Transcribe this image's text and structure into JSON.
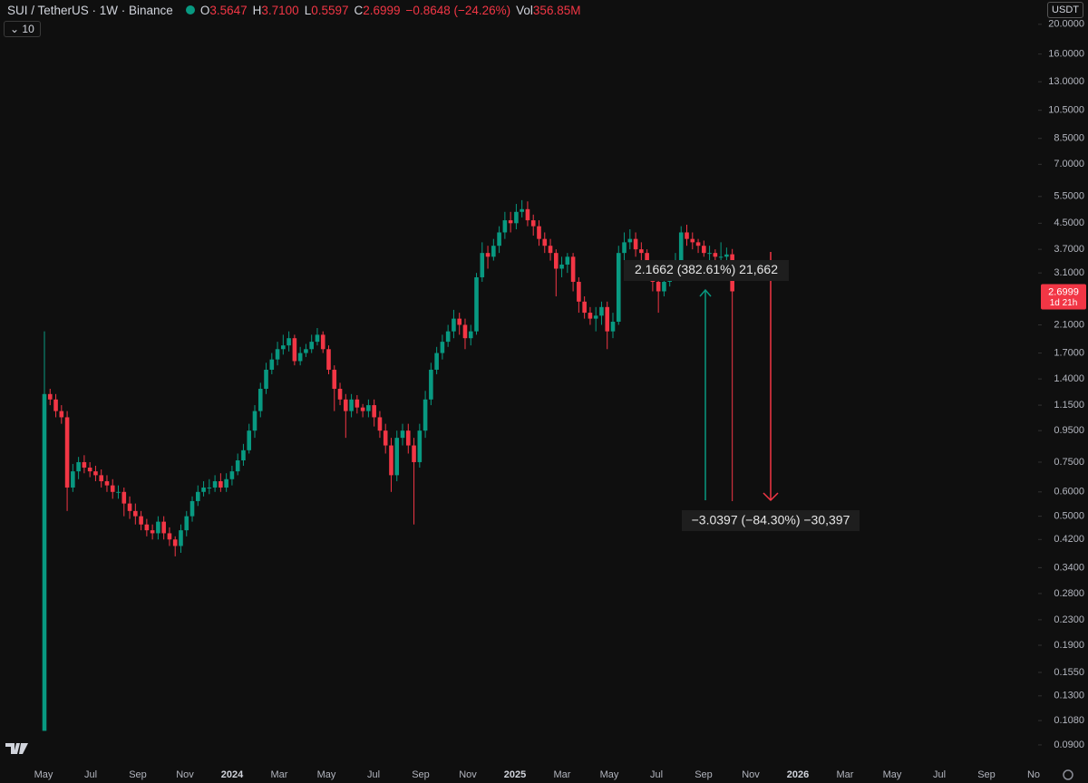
{
  "header": {
    "symbol": "SUI / TetherUS · 1W · Binance",
    "o_label": "O",
    "o": "3.5647",
    "h_label": "H",
    "h": "3.7100",
    "l_label": "L",
    "l": "0.5597",
    "c_label": "C",
    "c": "2.6999",
    "change": "−0.8648 (−24.26%)",
    "vol_label": "Vol",
    "vol": "356.85M",
    "indicator": "10",
    "currency": "USDT",
    "countdown": "1d 21h"
  },
  "chart_data": {
    "type": "candlestick",
    "log_scale": true,
    "up_color": "#089981",
    "down_color": "#f23645",
    "open": [
      0.1,
      1.25,
      1.2,
      1.1,
      1.05,
      0.62,
      0.7,
      0.75,
      0.72,
      0.7,
      0.68,
      0.65,
      0.63,
      0.6,
      0.6,
      0.55,
      0.52,
      0.5,
      0.47,
      0.45,
      0.44,
      0.48,
      0.44,
      0.42,
      0.4,
      0.45,
      0.5,
      0.56,
      0.6,
      0.62,
      0.62,
      0.65,
      0.62,
      0.66,
      0.7,
      0.76,
      0.82,
      0.95,
      1.1,
      1.3,
      1.5,
      1.62,
      1.75,
      1.8,
      1.9,
      1.6,
      1.7,
      1.75,
      1.85,
      1.95,
      1.75,
      1.5,
      1.3,
      1.2,
      1.1,
      1.2,
      1.13,
      1.1,
      1.15,
      1.05,
      0.95,
      0.85,
      0.68,
      0.9,
      0.95,
      0.85,
      0.75,
      0.95,
      1.2,
      1.5,
      1.7,
      1.85,
      2.0,
      2.2,
      2.1,
      1.9,
      2.0,
      3.0,
      3.6,
      3.5,
      3.8,
      4.2,
      4.6,
      4.5,
      4.9,
      5.0,
      4.6,
      4.4,
      4.0,
      3.8,
      3.6,
      3.2,
      3.3,
      3.5,
      2.9,
      2.5,
      2.3,
      2.2,
      2.25,
      2.4,
      2.0,
      2.15,
      3.6,
      3.9,
      4.0,
      3.7,
      3.6,
      3.3,
      2.9,
      2.7,
      2.9,
      3.1,
      3.4,
      4.2,
      4.0,
      3.9,
      3.8,
      3.6,
      3.6,
      3.5,
      3.5,
      3.5647
    ],
    "high": [
      2.0,
      1.3,
      1.25,
      1.15,
      1.1,
      0.74,
      0.78,
      0.79,
      0.75,
      0.73,
      0.71,
      0.68,
      0.66,
      0.63,
      0.62,
      0.58,
      0.55,
      0.52,
      0.49,
      0.47,
      0.5,
      0.5,
      0.46,
      0.43,
      0.47,
      0.52,
      0.58,
      0.63,
      0.65,
      0.66,
      0.68,
      0.69,
      0.69,
      0.73,
      0.8,
      0.86,
      1.0,
      1.15,
      1.36,
      1.58,
      1.7,
      1.85,
      1.95,
      2.0,
      1.95,
      1.78,
      1.82,
      1.95,
      2.05,
      2.0,
      1.8,
      1.55,
      1.36,
      1.25,
      1.25,
      1.24,
      1.16,
      1.2,
      1.2,
      1.1,
      1.0,
      0.9,
      0.95,
      1.0,
      1.0,
      0.9,
      1.0,
      1.28,
      1.58,
      1.78,
      1.95,
      2.1,
      2.35,
      2.3,
      2.2,
      2.1,
      3.1,
      3.9,
      3.8,
      4.0,
      4.4,
      4.9,
      4.9,
      5.2,
      5.35,
      5.3,
      4.8,
      4.6,
      4.2,
      4.0,
      3.7,
      3.5,
      3.6,
      3.6,
      3.0,
      2.6,
      2.4,
      2.4,
      2.5,
      2.5,
      2.3,
      3.8,
      4.2,
      4.3,
      4.2,
      3.9,
      3.7,
      3.4,
      3.0,
      3.1,
      3.3,
      3.6,
      4.4,
      4.45,
      4.2,
      4.0,
      3.95,
      3.8,
      3.7,
      3.9,
      3.75,
      3.71
    ],
    "low": [
      0.1,
      1.15,
      1.05,
      1.0,
      0.52,
      0.6,
      0.66,
      0.69,
      0.67,
      0.65,
      0.62,
      0.6,
      0.57,
      0.57,
      0.5,
      0.49,
      0.47,
      0.45,
      0.43,
      0.42,
      0.42,
      0.42,
      0.4,
      0.37,
      0.38,
      0.43,
      0.48,
      0.54,
      0.58,
      0.59,
      0.6,
      0.6,
      0.6,
      0.63,
      0.68,
      0.73,
      0.8,
      0.9,
      1.05,
      1.25,
      1.45,
      1.55,
      1.68,
      1.72,
      1.55,
      1.55,
      1.65,
      1.7,
      1.8,
      1.7,
      1.45,
      1.1,
      1.15,
      0.9,
      1.05,
      1.08,
      1.05,
      1.05,
      0.98,
      0.9,
      0.8,
      0.6,
      0.65,
      0.85,
      0.8,
      0.47,
      0.72,
      0.9,
      1.15,
      1.45,
      1.62,
      1.78,
      1.9,
      1.95,
      1.75,
      1.8,
      1.95,
      2.9,
      3.2,
      3.4,
      3.6,
      4.0,
      4.2,
      4.3,
      4.7,
      4.4,
      4.1,
      3.8,
      3.6,
      3.4,
      2.6,
      3.0,
      3.1,
      2.7,
      2.3,
      2.2,
      2.1,
      2.0,
      2.1,
      1.75,
      1.9,
      2.1,
      3.4,
      3.7,
      3.5,
      3.4,
      3.1,
      2.7,
      2.3,
      2.6,
      2.8,
      3.0,
      3.3,
      3.8,
      3.7,
      3.6,
      3.5,
      3.4,
      3.35,
      3.35,
      3.4,
      0.5597
    ],
    "close": [
      1.25,
      1.2,
      1.1,
      1.05,
      0.62,
      0.7,
      0.75,
      0.72,
      0.7,
      0.68,
      0.65,
      0.63,
      0.6,
      0.6,
      0.55,
      0.52,
      0.5,
      0.47,
      0.45,
      0.44,
      0.48,
      0.44,
      0.42,
      0.4,
      0.45,
      0.5,
      0.56,
      0.6,
      0.62,
      0.62,
      0.65,
      0.62,
      0.66,
      0.7,
      0.76,
      0.82,
      0.95,
      1.1,
      1.3,
      1.5,
      1.62,
      1.75,
      1.8,
      1.9,
      1.6,
      1.7,
      1.75,
      1.85,
      1.95,
      1.75,
      1.5,
      1.3,
      1.2,
      1.1,
      1.2,
      1.13,
      1.1,
      1.15,
      1.05,
      0.95,
      0.85,
      0.68,
      0.9,
      0.95,
      0.85,
      0.75,
      0.95,
      1.2,
      1.5,
      1.7,
      1.85,
      2.0,
      2.2,
      2.1,
      1.9,
      2.0,
      3.0,
      3.6,
      3.5,
      3.8,
      4.2,
      4.6,
      4.5,
      4.9,
      5.0,
      4.6,
      4.4,
      4.0,
      3.8,
      3.6,
      3.2,
      3.3,
      3.5,
      2.9,
      2.5,
      2.3,
      2.2,
      2.25,
      2.4,
      2.0,
      2.15,
      3.6,
      3.9,
      4.0,
      3.7,
      3.6,
      3.3,
      2.9,
      2.7,
      2.9,
      3.1,
      3.4,
      4.2,
      4.0,
      3.9,
      3.8,
      3.6,
      3.6,
      3.5,
      3.5,
      3.56,
      2.6999
    ],
    "ylim": [
      0.078,
      24
    ],
    "yticks": [
      {
        "value": 20,
        "label": "20.0000"
      },
      {
        "value": 16,
        "label": "16.0000"
      },
      {
        "value": 13,
        "label": "13.0000"
      },
      {
        "value": 10.5,
        "label": "10.5000"
      },
      {
        "value": 8.5,
        "label": "8.5000"
      },
      {
        "value": 7,
        "label": "7.0000"
      },
      {
        "value": 5.5,
        "label": "5.5000"
      },
      {
        "value": 4.5,
        "label": "4.5000"
      },
      {
        "value": 3.7,
        "label": "3.7000"
      },
      {
        "value": 3.1,
        "label": "3.1000"
      },
      {
        "value": 2.1,
        "label": "2.1000"
      },
      {
        "value": 1.7,
        "label": "1.7000"
      },
      {
        "value": 1.4,
        "label": "1.4000"
      },
      {
        "value": 1.15,
        "label": "1.1500"
      },
      {
        "value": 0.95,
        "label": "0.9500"
      },
      {
        "value": 0.75,
        "label": "0.7500"
      },
      {
        "value": 0.6,
        "label": "0.6000"
      },
      {
        "value": 0.5,
        "label": "0.5000"
      },
      {
        "value": 0.42,
        "label": "0.4200"
      },
      {
        "value": 0.34,
        "label": "0.3400"
      },
      {
        "value": 0.28,
        "label": "0.2800"
      },
      {
        "value": 0.23,
        "label": "0.2300"
      },
      {
        "value": 0.19,
        "label": "0.1900"
      },
      {
        "value": 0.155,
        "label": "0.1550"
      },
      {
        "value": 0.13,
        "label": "0.1300"
      },
      {
        "value": 0.108,
        "label": "0.1080"
      },
      {
        "value": 0.09,
        "label": "0.0900"
      }
    ],
    "x_labels": [
      "May",
      "Jul",
      "Sep",
      "Nov",
      "2024",
      "Mar",
      "May",
      "Jul",
      "Sep",
      "Nov",
      "2025",
      "Mar",
      "May",
      "Jul",
      "Sep",
      "Nov",
      "2026",
      "Mar",
      "May",
      "Jul",
      "Sep",
      "No"
    ],
    "annotations": [
      "2.1662 (382.61%) 21,662",
      "−3.0397 (−84.30%) −30,397"
    ]
  }
}
